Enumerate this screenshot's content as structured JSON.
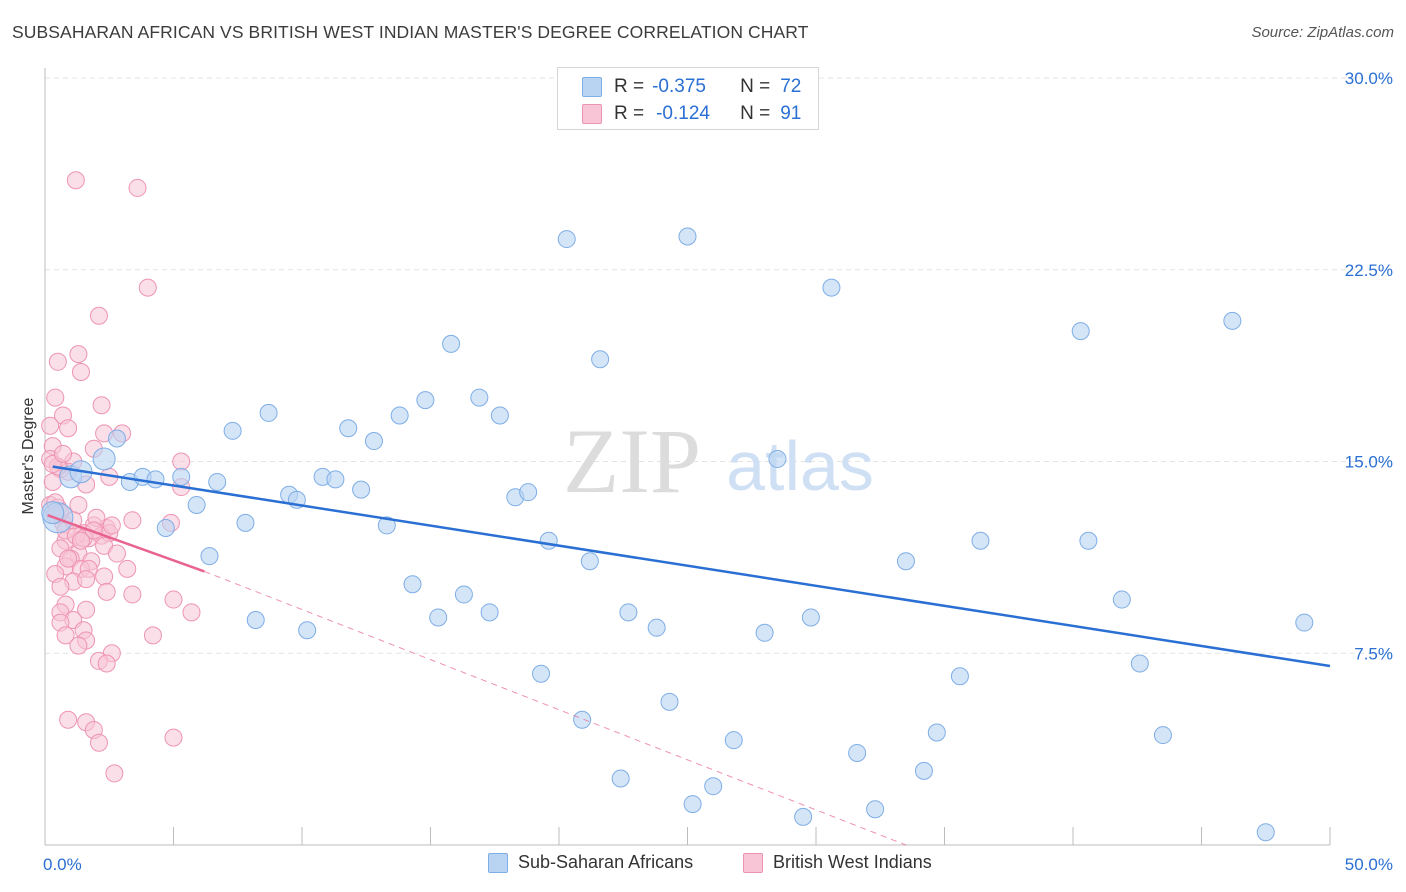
{
  "header": {
    "title": "SUBSAHARAN AFRICAN VS BRITISH WEST INDIAN MASTER'S DEGREE CORRELATION CHART",
    "source": "Source: ZipAtlas.com"
  },
  "watermark": {
    "zip": "ZIP",
    "atlas": "atlas"
  },
  "legend": {
    "rows": [
      {
        "r_label": "R =",
        "r_value": "-0.375",
        "n_label": "N =",
        "n_value": "72"
      },
      {
        "r_label": "R =",
        "r_value": "-0.124",
        "n_label": "N =",
        "n_value": "91"
      }
    ]
  },
  "bottom_legend": {
    "items": [
      "Sub-Saharan Africans",
      "British West Indians"
    ]
  },
  "colors": {
    "blue_fill": "#b9d3f3",
    "blue_stroke": "#7eaee6",
    "blue_line": "#2a6fd3",
    "pink_fill": "#f7c5d5",
    "pink_stroke": "#ee94b2",
    "pink_line": "#e8638f",
    "axis_label_blue": "#2a6fd3",
    "grid": "#e3e3e3"
  },
  "chart_data": {
    "type": "scatter",
    "title": "SUBSAHARAN AFRICAN VS BRITISH WEST INDIAN MASTER'S DEGREE CORRELATION CHART",
    "xlabel": "",
    "ylabel": "Master's Degree",
    "xlim": [
      0,
      50
    ],
    "ylim": [
      0,
      30
    ],
    "x_tick_labels": [
      "0.0%",
      "50.0%"
    ],
    "y_ticks": [
      7.5,
      15.0,
      22.5,
      30.0
    ],
    "y_tick_labels": [
      "7.5%",
      "15.0%",
      "22.5%",
      "30.0%"
    ],
    "grid": "horizontal dashed",
    "legend_position": "top-center",
    "series": [
      {
        "name": "Sub-Saharan Africans",
        "r": -0.375,
        "n": 72,
        "trend": {
          "x": [
            0.3,
            50
          ],
          "y": [
            14.8,
            7.0
          ]
        },
        "points": [
          [
            1.0,
            14.4
          ],
          [
            1.4,
            14.6
          ],
          [
            2.3,
            15.1
          ],
          [
            2.8,
            15.9
          ],
          [
            3.3,
            14.2
          ],
          [
            3.8,
            14.4
          ],
          [
            4.3,
            14.3
          ],
          [
            4.7,
            12.4
          ],
          [
            5.3,
            14.4
          ],
          [
            5.9,
            13.3
          ],
          [
            6.4,
            11.3
          ],
          [
            6.7,
            14.2
          ],
          [
            7.3,
            16.2
          ],
          [
            7.8,
            12.6
          ],
          [
            8.2,
            8.8
          ],
          [
            8.7,
            16.9
          ],
          [
            9.5,
            13.7
          ],
          [
            9.8,
            13.5
          ],
          [
            10.2,
            8.4
          ],
          [
            10.8,
            14.4
          ],
          [
            11.3,
            14.3
          ],
          [
            11.8,
            16.3
          ],
          [
            12.3,
            13.9
          ],
          [
            12.8,
            15.8
          ],
          [
            13.3,
            12.5
          ],
          [
            13.8,
            16.8
          ],
          [
            14.3,
            10.2
          ],
          [
            14.8,
            17.4
          ],
          [
            15.3,
            8.9
          ],
          [
            15.8,
            19.6
          ],
          [
            16.3,
            9.8
          ],
          [
            16.9,
            17.5
          ],
          [
            17.3,
            9.1
          ],
          [
            17.7,
            16.8
          ],
          [
            18.3,
            13.6
          ],
          [
            18.8,
            13.8
          ],
          [
            19.3,
            6.7
          ],
          [
            19.6,
            11.9
          ],
          [
            20.3,
            23.7
          ],
          [
            20.9,
            4.9
          ],
          [
            21.2,
            11.1
          ],
          [
            21.6,
            19.0
          ],
          [
            22.4,
            2.6
          ],
          [
            22.7,
            9.1
          ],
          [
            23.8,
            8.5
          ],
          [
            24.3,
            5.6
          ],
          [
            25.0,
            23.8
          ],
          [
            25.2,
            1.6
          ],
          [
            26.0,
            2.3
          ],
          [
            26.8,
            4.1
          ],
          [
            28.0,
            8.3
          ],
          [
            28.5,
            15.1
          ],
          [
            29.5,
            1.1
          ],
          [
            29.8,
            8.9
          ],
          [
            30.6,
            21.8
          ],
          [
            31.6,
            3.6
          ],
          [
            32.3,
            1.4
          ],
          [
            33.5,
            11.1
          ],
          [
            34.2,
            2.9
          ],
          [
            34.7,
            4.4
          ],
          [
            35.6,
            6.6
          ],
          [
            36.4,
            11.9
          ],
          [
            40.3,
            20.1
          ],
          [
            40.6,
            11.9
          ],
          [
            41.9,
            9.6
          ],
          [
            42.6,
            7.1
          ],
          [
            43.5,
            4.3
          ],
          [
            46.2,
            20.5
          ],
          [
            47.5,
            0.5
          ],
          [
            49.0,
            8.7
          ],
          [
            0.5,
            12.8
          ],
          [
            0.3,
            13.0
          ]
        ],
        "point_sizes": [
          2,
          2,
          2,
          1,
          1,
          1,
          1,
          1,
          1,
          1,
          1,
          1,
          1,
          1,
          1,
          1,
          1,
          1,
          1,
          1,
          1,
          1,
          1,
          1,
          1,
          1,
          1,
          1,
          1,
          1,
          1,
          1,
          1,
          1,
          1,
          1,
          1,
          1,
          1,
          1,
          1,
          1,
          1,
          1,
          1,
          1,
          1,
          1,
          1,
          1,
          1,
          1,
          1,
          1,
          1,
          1,
          1,
          1,
          1,
          1,
          1,
          1,
          1,
          1,
          1,
          1,
          1,
          1,
          1,
          1,
          3,
          2
        ]
      },
      {
        "name": "British West Indians",
        "r": -0.124,
        "n": 91,
        "trend_solid": {
          "x": [
            0.1,
            6.2
          ],
          "y": [
            12.9,
            10.7
          ]
        },
        "trend_dashed": {
          "x": [
            6.2,
            33.5
          ],
          "y": [
            10.7,
            0.0
          ]
        },
        "points": [
          [
            1.2,
            26.0
          ],
          [
            3.6,
            25.7
          ],
          [
            4.0,
            21.8
          ],
          [
            2.1,
            20.7
          ],
          [
            1.3,
            19.2
          ],
          [
            0.5,
            18.9
          ],
          [
            1.4,
            18.5
          ],
          [
            0.4,
            17.5
          ],
          [
            2.2,
            17.2
          ],
          [
            0.7,
            16.8
          ],
          [
            0.2,
            16.4
          ],
          [
            0.9,
            16.3
          ],
          [
            3.0,
            16.1
          ],
          [
            2.3,
            16.1
          ],
          [
            0.3,
            15.6
          ],
          [
            1.9,
            15.5
          ],
          [
            0.2,
            15.1
          ],
          [
            1.1,
            15.0
          ],
          [
            5.3,
            15.0
          ],
          [
            0.6,
            14.7
          ],
          [
            0.9,
            14.6
          ],
          [
            2.5,
            14.4
          ],
          [
            0.3,
            14.2
          ],
          [
            1.6,
            14.1
          ],
          [
            5.3,
            14.0
          ],
          [
            0.2,
            13.3
          ],
          [
            0.5,
            13.2
          ],
          [
            1.3,
            13.3
          ],
          [
            0.7,
            12.6
          ],
          [
            1.9,
            12.5
          ],
          [
            4.9,
            12.6
          ],
          [
            2.4,
            12.4
          ],
          [
            3.4,
            12.7
          ],
          [
            1.5,
            12.2
          ],
          [
            1.7,
            12.0
          ],
          [
            2.2,
            12.1
          ],
          [
            0.8,
            11.9
          ],
          [
            2.5,
            12.2
          ],
          [
            0.6,
            11.6
          ],
          [
            1.3,
            11.4
          ],
          [
            2.3,
            11.7
          ],
          [
            1.0,
            11.2
          ],
          [
            1.8,
            11.1
          ],
          [
            0.8,
            10.9
          ],
          [
            1.4,
            10.8
          ],
          [
            0.4,
            10.6
          ],
          [
            1.7,
            10.8
          ],
          [
            3.2,
            10.8
          ],
          [
            1.1,
            10.3
          ],
          [
            2.3,
            10.5
          ],
          [
            0.6,
            10.1
          ],
          [
            2.4,
            9.9
          ],
          [
            3.4,
            9.8
          ],
          [
            5.0,
            9.6
          ],
          [
            0.8,
            9.4
          ],
          [
            1.6,
            9.2
          ],
          [
            0.6,
            9.1
          ],
          [
            5.7,
            9.1
          ],
          [
            1.1,
            8.8
          ],
          [
            0.6,
            8.7
          ],
          [
            1.5,
            8.4
          ],
          [
            4.2,
            8.2
          ],
          [
            0.8,
            8.2
          ],
          [
            1.6,
            8.0
          ],
          [
            1.3,
            7.8
          ],
          [
            2.6,
            7.5
          ],
          [
            2.1,
            7.2
          ],
          [
            2.4,
            7.1
          ],
          [
            0.9,
            4.9
          ],
          [
            1.6,
            4.8
          ],
          [
            1.9,
            4.5
          ],
          [
            2.1,
            4.0
          ],
          [
            5.0,
            4.2
          ],
          [
            2.7,
            2.8
          ],
          [
            0.4,
            13.4
          ],
          [
            0.8,
            12.3
          ],
          [
            1.2,
            12.1
          ],
          [
            0.5,
            14.8
          ],
          [
            1.5,
            12.0
          ],
          [
            2.0,
            12.8
          ],
          [
            0.3,
            14.9
          ],
          [
            1.9,
            12.3
          ],
          [
            0.6,
            13.0
          ],
          [
            1.4,
            11.9
          ],
          [
            2.6,
            12.5
          ],
          [
            0.9,
            11.2
          ],
          [
            1.1,
            12.7
          ],
          [
            2.8,
            11.4
          ],
          [
            0.7,
            15.3
          ],
          [
            1.6,
            10.4
          ],
          [
            0.4,
            12.9
          ]
        ]
      }
    ]
  }
}
